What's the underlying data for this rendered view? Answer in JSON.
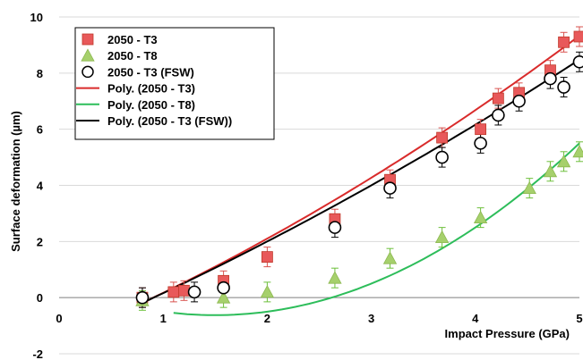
{
  "chart_data": {
    "type": "scatter",
    "xlabel": "Impact Pressure (GPa)",
    "ylabel": "Surface deformation (µm)",
    "xlim": [
      0,
      5
    ],
    "ylim": [
      -2,
      10
    ],
    "x_ticks": [
      "0",
      "1",
      "2",
      "3",
      "4",
      "5"
    ],
    "y_ticks": [
      "-2",
      "0",
      "2",
      "4",
      "6",
      "8",
      "10"
    ],
    "grid": "horizontal",
    "legend_position": "top-left",
    "series": [
      {
        "name": "2050 - T3",
        "marker": "square",
        "color": "#e8595a",
        "error_bar": 0.35,
        "x": [
          0.8,
          1.1,
          1.2,
          1.58,
          2.0,
          2.65,
          3.18,
          3.68,
          4.05,
          4.22,
          4.42,
          4.72,
          4.85,
          5.0
        ],
        "y": [
          0.0,
          0.2,
          0.25,
          0.6,
          1.45,
          2.8,
          4.2,
          5.7,
          6.0,
          7.1,
          7.3,
          8.1,
          9.1,
          9.3
        ]
      },
      {
        "name": "2050 - T8",
        "marker": "triangle",
        "color": "#a6d06c",
        "error_bar": 0.35,
        "x": [
          0.8,
          1.58,
          2.0,
          2.65,
          3.18,
          3.68,
          4.05,
          4.52,
          4.72,
          4.85,
          5.0
        ],
        "y": [
          -0.1,
          0.0,
          0.2,
          0.7,
          1.4,
          2.15,
          2.85,
          3.9,
          4.5,
          4.85,
          5.2
        ]
      },
      {
        "name": "2050 - T3 (FSW)",
        "marker": "circle",
        "color": "#000000",
        "error_bar": 0.35,
        "x": [
          0.8,
          1.3,
          1.58,
          2.65,
          3.18,
          3.68,
          4.05,
          4.22,
          4.42,
          4.72,
          4.85,
          5.0
        ],
        "y": [
          0.0,
          0.2,
          0.35,
          2.5,
          3.9,
          5.0,
          5.5,
          6.5,
          7.0,
          7.8,
          7.5,
          8.4
        ]
      }
    ],
    "trendlines": [
      {
        "name": "Poly. (2050 - T3)",
        "color": "#d92b2b",
        "x_start": 0.8,
        "x_end": 5.0,
        "coeffs": [
          -1.52,
          1.57,
          0.12
        ]
      },
      {
        "name": "Poly. (2050 - T8)",
        "color": "#2dbd5a",
        "x_start": 1.1,
        "x_end": 5.0,
        "coeffs": [
          0.5,
          -1.5,
          0.5
        ]
      },
      {
        "name": "Poly. (2050 - T3 (FSW))",
        "color": "#000000",
        "x_start": 0.8,
        "x_end": 5.0,
        "coeffs": [
          -1.52,
          1.6,
          0.08
        ]
      }
    ]
  }
}
